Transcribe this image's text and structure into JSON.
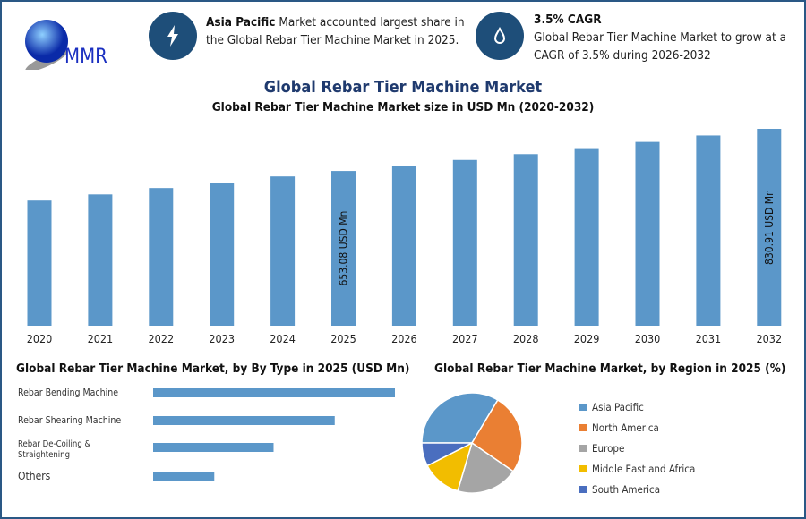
{
  "logo": {
    "text": "MMR"
  },
  "info1": {
    "bold": "Asia Pacific",
    "text": " Market accounted largest share in the Global Rebar Tier Machine Market in 2025.",
    "icon": "lightning-icon"
  },
  "info2": {
    "bold": "3.5% CAGR",
    "text": "Global Rebar Tier Machine Market to grow at a CAGR of 3.5% during 2026-2032",
    "icon": "growth-drop-icon"
  },
  "colors": {
    "bar": "#5b97c9",
    "title": "#1f3a6e",
    "frame": "#2a5885"
  },
  "chart_data": [
    {
      "type": "bar",
      "title": "Global Rebar Tier Machine Market",
      "subtitle": "Global Rebar Tier Machine Market size in USD Mn (2020-2032)",
      "categories": [
        "2020",
        "2021",
        "2022",
        "2023",
        "2024",
        "2025",
        "2026",
        "2027",
        "2028",
        "2029",
        "2030",
        "2031",
        "2032"
      ],
      "values": [
        528,
        554,
        581,
        603,
        630,
        653.08,
        675.9,
        699.6,
        724.1,
        749.4,
        775.7,
        802.8,
        830.91
      ],
      "data_labels": {
        "2025": "653.08 USD Mn",
        "2032": "830.91 USD Mn"
      },
      "ylim": [
        0,
        830.91
      ],
      "grid": false
    },
    {
      "type": "bar",
      "orientation": "horizontal",
      "title": "Global Rebar Tier Machine Market, by By Type in 2025 (USD Mn)",
      "categories": [
        "Rebar Bending Machine",
        "Rebar Shearing Machine",
        "Rebar De-Coiling & Straightening",
        "Others"
      ],
      "values": [
        261,
        196,
        130,
        66
      ]
    },
    {
      "type": "pie",
      "title": "Global Rebar Tier Machine Market, by Region in 2025 (%)",
      "categories": [
        "Asia Pacific",
        "North America",
        "Europe",
        "Middle East and Africa",
        "South America"
      ],
      "values": [
        33.6,
        26,
        20,
        12.9,
        7.5
      ],
      "colors": [
        "#5b97c9",
        "#ea7f33",
        "#a5a5a5",
        "#f2bd00",
        "#4a6ebf"
      ],
      "legend": "right"
    }
  ]
}
